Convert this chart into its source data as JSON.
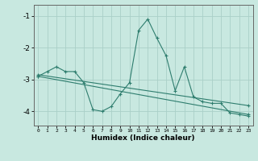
{
  "x": [
    0,
    1,
    2,
    3,
    4,
    5,
    6,
    7,
    8,
    9,
    10,
    11,
    12,
    13,
    14,
    15,
    16,
    17,
    18,
    19,
    20,
    21,
    22,
    23
  ],
  "line1": [
    -2.9,
    -2.75,
    -2.6,
    -2.75,
    -2.75,
    -3.1,
    -3.95,
    -4.0,
    -3.85,
    -3.45,
    -3.1,
    -1.45,
    -1.1,
    -1.7,
    -2.25,
    -3.35,
    -2.6,
    -3.55,
    -3.7,
    -3.75,
    -3.75,
    -4.05,
    -4.1,
    -4.15
  ],
  "line2_y": [
    -2.9,
    -4.1
  ],
  "line3_y": [
    -2.85,
    -3.82
  ],
  "color": "#2e7d6e",
  "bg_color": "#c8e8e0",
  "grid_color": "#aacfc8",
  "xlabel": "Humidex (Indice chaleur)",
  "yticks": [
    -1,
    -2,
    -3,
    -4
  ],
  "xticks": [
    0,
    1,
    2,
    3,
    4,
    5,
    6,
    7,
    8,
    9,
    10,
    11,
    12,
    13,
    14,
    15,
    16,
    17,
    18,
    19,
    20,
    21,
    22,
    23
  ],
  "xlim": [
    -0.5,
    23.5
  ],
  "ylim": [
    -4.45,
    -0.65
  ]
}
